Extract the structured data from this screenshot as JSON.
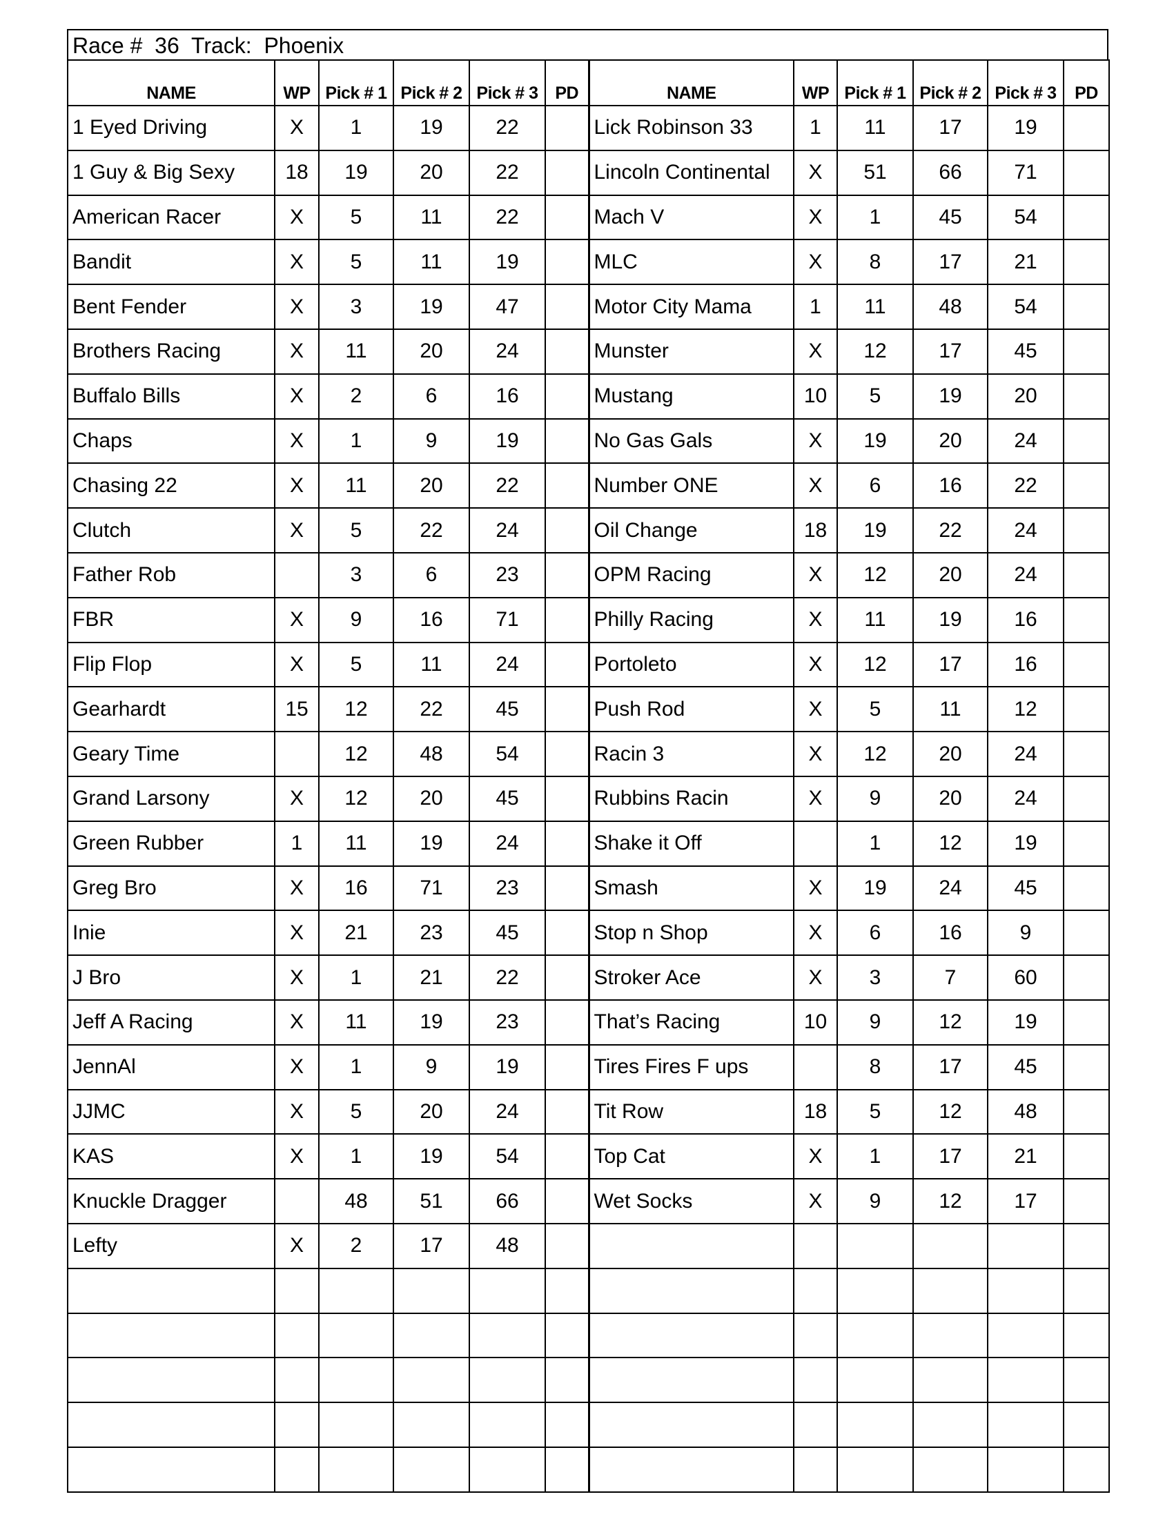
{
  "title": "Race #  36  Track:  Phoenix",
  "headers": [
    "NAME",
    "WP",
    "Pick # 1",
    "Pick # 2",
    "Pick # 3",
    "PD"
  ],
  "left": [
    [
      "1 Eyed Driving",
      "X",
      "1",
      "19",
      "22",
      ""
    ],
    [
      "1 Guy & Big Sexy",
      "18",
      "19",
      "20",
      "22",
      ""
    ],
    [
      "American Racer",
      "X",
      "5",
      "11",
      "22",
      ""
    ],
    [
      "Bandit",
      "X",
      "5",
      "11",
      "19",
      ""
    ],
    [
      "Bent Fender",
      "X",
      "3",
      "19",
      "47",
      ""
    ],
    [
      "Brothers Racing",
      "X",
      "11",
      "20",
      "24",
      ""
    ],
    [
      "Buffalo Bills",
      "X",
      "2",
      "6",
      "16",
      ""
    ],
    [
      "Chaps",
      "X",
      "1",
      "9",
      "19",
      ""
    ],
    [
      "Chasing 22",
      "X",
      "11",
      "20",
      "22",
      ""
    ],
    [
      "Clutch",
      "X",
      "5",
      "22",
      "24",
      ""
    ],
    [
      "Father Rob",
      "",
      "3",
      "6",
      "23",
      ""
    ],
    [
      "FBR",
      "X",
      "9",
      "16",
      "71",
      ""
    ],
    [
      "Flip Flop",
      "X",
      "5",
      "11",
      "24",
      ""
    ],
    [
      "Gearhardt",
      "15",
      "12",
      "22",
      "45",
      ""
    ],
    [
      "Geary Time",
      "",
      "12",
      "48",
      "54",
      ""
    ],
    [
      "Grand Larsony",
      "X",
      "12",
      "20",
      "45",
      ""
    ],
    [
      "Green Rubber",
      "1",
      "11",
      "19",
      "24",
      ""
    ],
    [
      "Greg Bro",
      "X",
      "16",
      "71",
      "23",
      ""
    ],
    [
      "Inie",
      "X",
      "21",
      "23",
      "45",
      ""
    ],
    [
      "J Bro",
      "X",
      "1",
      "21",
      "22",
      ""
    ],
    [
      "Jeff A Racing",
      "X",
      "11",
      "19",
      "23",
      ""
    ],
    [
      "JennAl",
      "X",
      "1",
      "9",
      "19",
      ""
    ],
    [
      "JJMC",
      "X",
      "5",
      "20",
      "24",
      ""
    ],
    [
      "KAS",
      "X",
      "1",
      "19",
      "54",
      ""
    ],
    [
      "Knuckle Dragger",
      "",
      "48",
      "51",
      "66",
      ""
    ],
    [
      "Lefty",
      "X",
      "2",
      "17",
      "48",
      ""
    ],
    [
      "",
      "",
      "",
      "",
      "",
      ""
    ],
    [
      "",
      "",
      "",
      "",
      "",
      ""
    ],
    [
      "",
      "",
      "",
      "",
      "",
      ""
    ],
    [
      "",
      "",
      "",
      "",
      "",
      ""
    ],
    [
      "",
      "",
      "",
      "",
      "",
      ""
    ]
  ],
  "right": [
    [
      "Lick Robinson 33",
      "1",
      "11",
      "17",
      "19",
      ""
    ],
    [
      "Lincoln Continental",
      "X",
      "51",
      "66",
      "71",
      ""
    ],
    [
      "Mach V",
      "X",
      "1",
      "45",
      "54",
      ""
    ],
    [
      "MLC",
      "X",
      "8",
      "17",
      "21",
      ""
    ],
    [
      "Motor City Mama",
      "1",
      "11",
      "48",
      "54",
      ""
    ],
    [
      "Munster",
      "X",
      "12",
      "17",
      "45",
      ""
    ],
    [
      "Mustang",
      "10",
      "5",
      "19",
      "20",
      ""
    ],
    [
      "No Gas Gals",
      "X",
      "19",
      "20",
      "24",
      ""
    ],
    [
      "Number ONE",
      "X",
      "6",
      "16",
      "22",
      ""
    ],
    [
      "Oil Change",
      "18",
      "19",
      "22",
      "24",
      ""
    ],
    [
      "OPM Racing",
      "X",
      "12",
      "20",
      "24",
      ""
    ],
    [
      "Philly Racing",
      "X",
      "11",
      "19",
      "16",
      ""
    ],
    [
      "Portoleto",
      "X",
      "12",
      "17",
      "16",
      ""
    ],
    [
      "Push Rod",
      "X",
      "5",
      "11",
      "12",
      ""
    ],
    [
      "Racin 3",
      "X",
      "12",
      "20",
      "24",
      ""
    ],
    [
      "Rubbins Racin",
      "X",
      "9",
      "20",
      "24",
      ""
    ],
    [
      "Shake it Off",
      "",
      "1",
      "12",
      "19",
      ""
    ],
    [
      "Smash",
      "X",
      "19",
      "24",
      "45",
      ""
    ],
    [
      "Stop n Shop",
      "X",
      "6",
      "16",
      "9",
      ""
    ],
    [
      "Stroker Ace",
      "X",
      "3",
      "7",
      "60",
      ""
    ],
    [
      "That’s Racing",
      "10",
      "9",
      "12",
      "19",
      ""
    ],
    [
      "Tires Fires F ups",
      "",
      "8",
      "17",
      "45",
      ""
    ],
    [
      "Tit Row",
      "18",
      "5",
      "12",
      "48",
      ""
    ],
    [
      "Top Cat",
      "X",
      "1",
      "17",
      "21",
      ""
    ],
    [
      "Wet Socks",
      "X",
      "9",
      "12",
      "17",
      ""
    ],
    [
      "",
      "",
      "",
      "",
      "",
      ""
    ],
    [
      "",
      "",
      "",
      "",
      "",
      ""
    ],
    [
      "",
      "",
      "",
      "",
      "",
      ""
    ],
    [
      "",
      "",
      "",
      "",
      "",
      ""
    ],
    [
      "",
      "",
      "",
      "",
      "",
      ""
    ],
    [
      "",
      "",
      "",
      "",
      "",
      ""
    ]
  ]
}
